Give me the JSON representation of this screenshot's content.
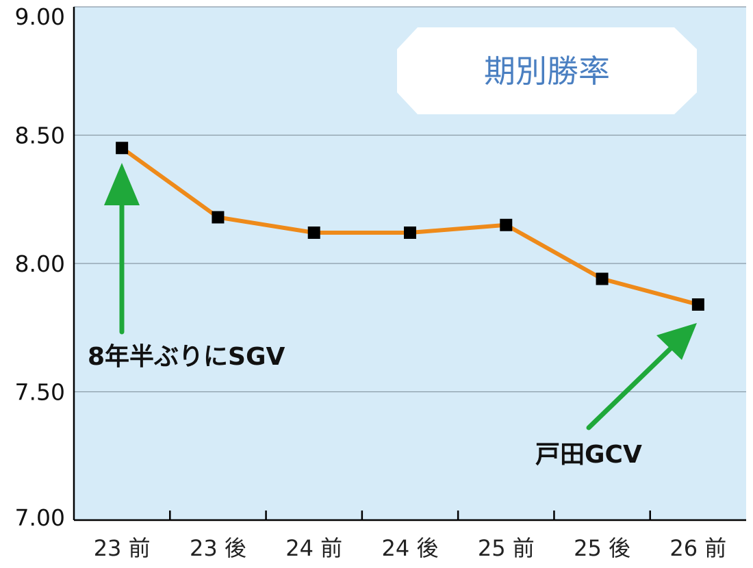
{
  "chart_data": {
    "type": "line",
    "title": "期別勝率",
    "categories": [
      "23 前",
      "23 後",
      "24 前",
      "24 後",
      "25 前",
      "25 後",
      "26 前"
    ],
    "series": [
      {
        "values": [
          8.45,
          8.18,
          8.12,
          8.12,
          8.15,
          7.94,
          7.84
        ]
      }
    ],
    "y_ticks": [
      "7.00",
      "7.50",
      "8.00",
      "8.50",
      "9.00"
    ],
    "ylim": [
      7.0,
      9.0
    ],
    "grid": true,
    "annotations": [
      {
        "text": "8年半ぶりにSGV",
        "category": "23 前"
      },
      {
        "text": "戸田GCV",
        "category": "26 前"
      }
    ],
    "colors": {
      "line": "#ee8a1a",
      "marker": "#000000",
      "plot_background": "#d6ebf8",
      "grid": "#8a9aa6",
      "arrow": "#1fa83a",
      "title": "#4a7fc1"
    }
  }
}
